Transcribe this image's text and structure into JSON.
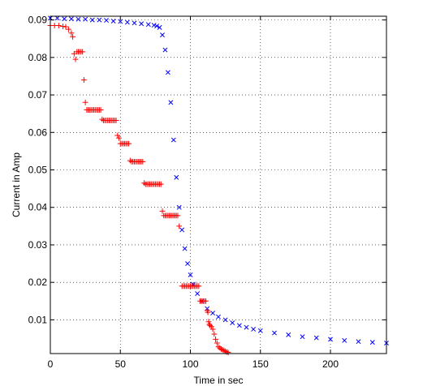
{
  "chart_data": {
    "type": "scatter",
    "title": "",
    "xlabel": "Time in sec",
    "ylabel": "Current in Amp",
    "xlim": [
      0,
      240
    ],
    "ylim": [
      0.001,
      0.091
    ],
    "x_ticks": [
      "0",
      "50",
      "100",
      "150",
      "200"
    ],
    "y_ticks": [
      "0.01",
      "0.02",
      "0.03",
      "0.04",
      "0.05",
      "0.06",
      "0.07",
      "0.08",
      "0.09"
    ],
    "grid": "dotted",
    "legend": "none",
    "series": [
      {
        "marker": "x",
        "color": "#0000ff",
        "points": [
          [
            0,
            0.0905
          ],
          [
            5,
            0.0905
          ],
          [
            10,
            0.0903
          ],
          [
            15,
            0.0903
          ],
          [
            20,
            0.0902
          ],
          [
            25,
            0.0902
          ],
          [
            30,
            0.09
          ],
          [
            35,
            0.09
          ],
          [
            40,
            0.0899
          ],
          [
            45,
            0.0897
          ],
          [
            50,
            0.0896
          ],
          [
            55,
            0.0894
          ],
          [
            60,
            0.0892
          ],
          [
            65,
            0.089
          ],
          [
            70,
            0.0888
          ],
          [
            74,
            0.0886
          ],
          [
            76,
            0.0884
          ],
          [
            78,
            0.088
          ],
          [
            80,
            0.086
          ],
          [
            82,
            0.082
          ],
          [
            84,
            0.076
          ],
          [
            86,
            0.068
          ],
          [
            88,
            0.058
          ],
          [
            90,
            0.048
          ],
          [
            92,
            0.04
          ],
          [
            94,
            0.034
          ],
          [
            96,
            0.029
          ],
          [
            98,
            0.025
          ],
          [
            100,
            0.022
          ],
          [
            102,
            0.0195
          ],
          [
            105,
            0.017
          ],
          [
            108,
            0.015
          ],
          [
            112,
            0.013
          ],
          [
            116,
            0.0118
          ],
          [
            120,
            0.0108
          ],
          [
            125,
            0.01
          ],
          [
            130,
            0.0092
          ],
          [
            135,
            0.0085
          ],
          [
            140,
            0.008
          ],
          [
            145,
            0.0075
          ],
          [
            150,
            0.0071
          ],
          [
            160,
            0.0065
          ],
          [
            170,
            0.006
          ],
          [
            180,
            0.0055
          ],
          [
            190,
            0.0052
          ],
          [
            200,
            0.0048
          ],
          [
            210,
            0.0045
          ],
          [
            220,
            0.0042
          ],
          [
            230,
            0.004
          ],
          [
            240,
            0.0038
          ]
        ]
      },
      {
        "marker": "+",
        "color": "#ff0000",
        "points": [
          [
            0,
            0.0885
          ],
          [
            3,
            0.0885
          ],
          [
            6,
            0.0885
          ],
          [
            9,
            0.0883
          ],
          [
            11,
            0.0882
          ],
          [
            13,
            0.0875
          ],
          [
            15,
            0.0865
          ],
          [
            16,
            0.0855
          ],
          [
            17,
            0.081
          ],
          [
            18,
            0.0795
          ],
          [
            19,
            0.0815
          ],
          [
            20,
            0.0815
          ],
          [
            21,
            0.0815
          ],
          [
            22,
            0.0815
          ],
          [
            23,
            0.0815
          ],
          [
            24,
            0.074
          ],
          [
            25,
            0.068
          ],
          [
            26,
            0.066
          ],
          [
            27,
            0.066
          ],
          [
            28,
            0.066
          ],
          [
            29,
            0.066
          ],
          [
            30,
            0.066
          ],
          [
            31,
            0.066
          ],
          [
            32,
            0.066
          ],
          [
            33,
            0.066
          ],
          [
            34,
            0.066
          ],
          [
            35,
            0.066
          ],
          [
            36,
            0.066
          ],
          [
            37,
            0.0635
          ],
          [
            38,
            0.0632
          ],
          [
            39,
            0.0632
          ],
          [
            40,
            0.0632
          ],
          [
            41,
            0.0632
          ],
          [
            42,
            0.0632
          ],
          [
            43,
            0.0632
          ],
          [
            44,
            0.0632
          ],
          [
            45,
            0.0632
          ],
          [
            46,
            0.0632
          ],
          [
            47,
            0.0632
          ],
          [
            48,
            0.0592
          ],
          [
            49,
            0.0585
          ],
          [
            50,
            0.057
          ],
          [
            51,
            0.057
          ],
          [
            52,
            0.057
          ],
          [
            53,
            0.057
          ],
          [
            54,
            0.057
          ],
          [
            55,
            0.057
          ],
          [
            56,
            0.057
          ],
          [
            57,
            0.0525
          ],
          [
            58,
            0.0522
          ],
          [
            59,
            0.0522
          ],
          [
            60,
            0.0522
          ],
          [
            61,
            0.0522
          ],
          [
            62,
            0.0522
          ],
          [
            63,
            0.0522
          ],
          [
            64,
            0.0522
          ],
          [
            65,
            0.0522
          ],
          [
            66,
            0.0522
          ],
          [
            67,
            0.0465
          ],
          [
            68,
            0.0462
          ],
          [
            69,
            0.0462
          ],
          [
            70,
            0.0462
          ],
          [
            71,
            0.0462
          ],
          [
            72,
            0.0462
          ],
          [
            73,
            0.0462
          ],
          [
            74,
            0.0462
          ],
          [
            75,
            0.0462
          ],
          [
            76,
            0.0462
          ],
          [
            77,
            0.0462
          ],
          [
            78,
            0.0462
          ],
          [
            79,
            0.0462
          ],
          [
            80,
            0.039
          ],
          [
            81,
            0.0378
          ],
          [
            82,
            0.0378
          ],
          [
            83,
            0.0378
          ],
          [
            84,
            0.0378
          ],
          [
            85,
            0.0378
          ],
          [
            86,
            0.0378
          ],
          [
            87,
            0.0378
          ],
          [
            88,
            0.0378
          ],
          [
            89,
            0.0378
          ],
          [
            90,
            0.0378
          ],
          [
            91,
            0.0378
          ],
          [
            92,
            0.035
          ],
          [
            94,
            0.019
          ],
          [
            95,
            0.019
          ],
          [
            96,
            0.019
          ],
          [
            97,
            0.019
          ],
          [
            98,
            0.019
          ],
          [
            99,
            0.019
          ],
          [
            100,
            0.019
          ],
          [
            101,
            0.019
          ],
          [
            102,
            0.019
          ],
          [
            103,
            0.019
          ],
          [
            104,
            0.019
          ],
          [
            105,
            0.019
          ],
          [
            106,
            0.019
          ],
          [
            107,
            0.015
          ],
          [
            108,
            0.015
          ],
          [
            109,
            0.015
          ],
          [
            110,
            0.015
          ],
          [
            111,
            0.015
          ],
          [
            112,
            0.0125
          ],
          [
            112.5,
            0.012
          ],
          [
            113,
            0.0095
          ],
          [
            113.5,
            0.0088
          ],
          [
            114,
            0.0085
          ],
          [
            115,
            0.0082
          ],
          [
            116,
            0.0075
          ],
          [
            117,
            0.0062
          ],
          [
            118,
            0.0048
          ],
          [
            119,
            0.0038
          ],
          [
            120,
            0.0028
          ],
          [
            121,
            0.0025
          ],
          [
            122,
            0.0022
          ],
          [
            123,
            0.002
          ],
          [
            124,
            0.0018
          ],
          [
            125,
            0.0016
          ],
          [
            126,
            0.0014
          ],
          [
            127,
            0.0013
          ]
        ]
      }
    ]
  }
}
